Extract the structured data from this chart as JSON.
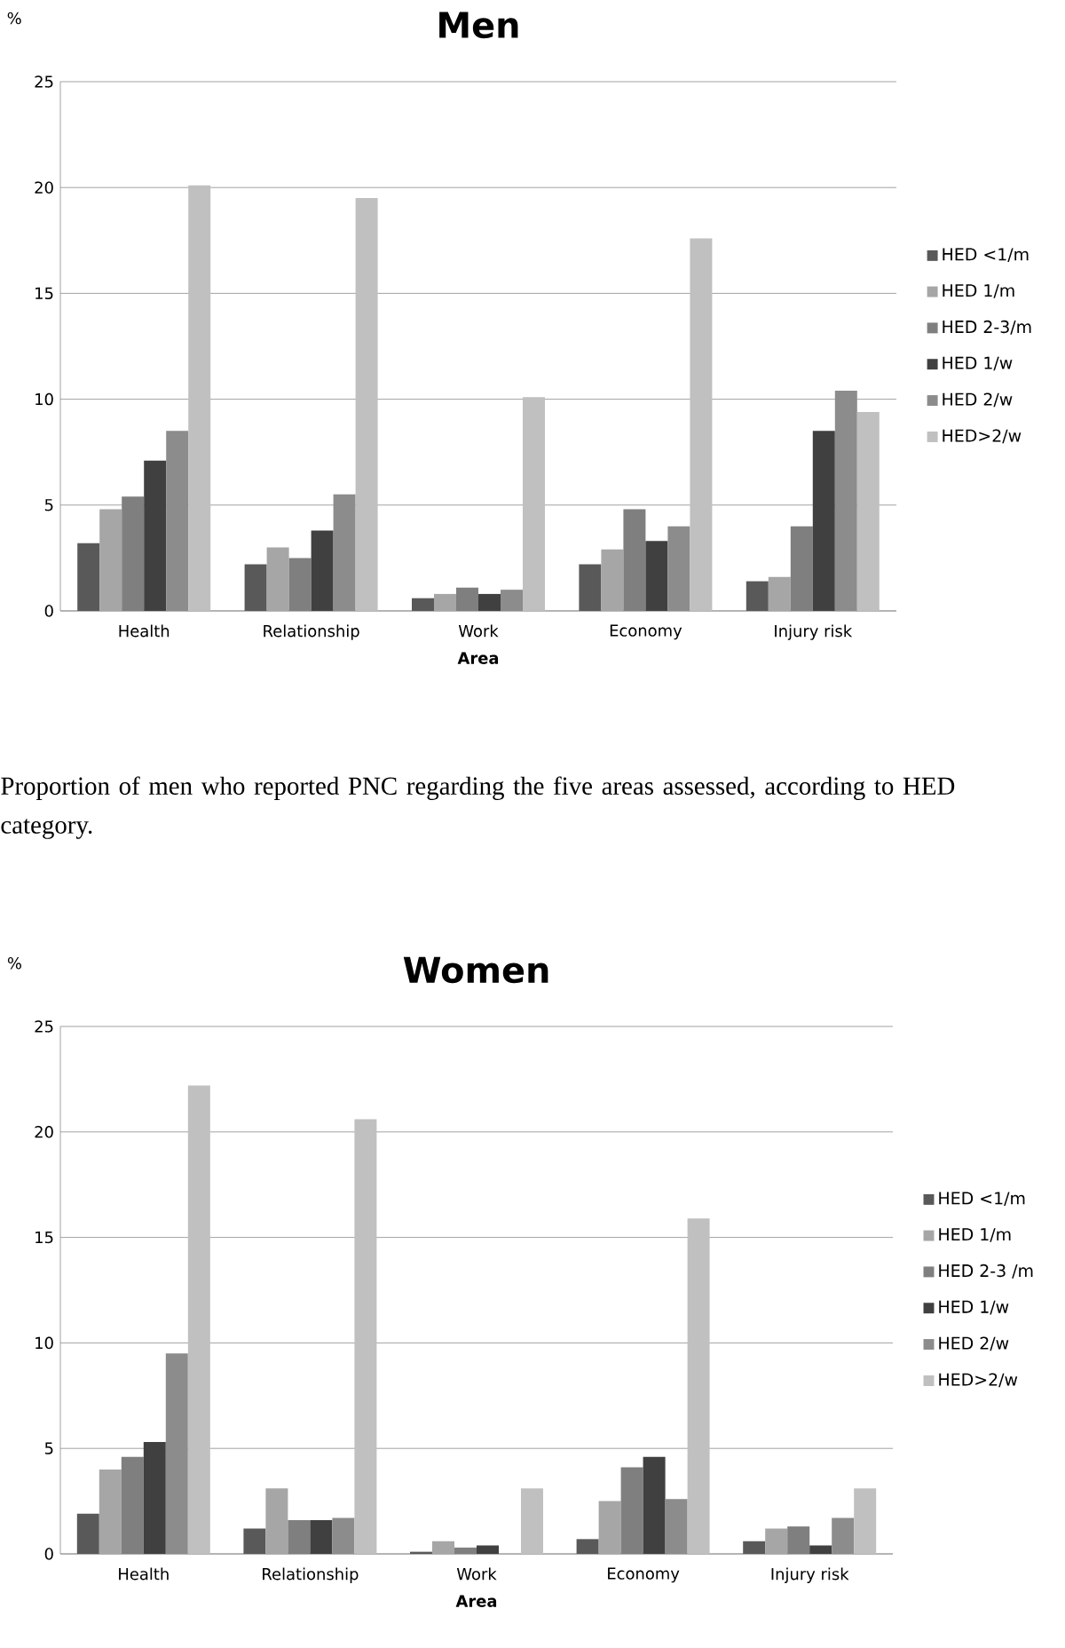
{
  "chart_data": [
    {
      "type": "bar",
      "title": "Men",
      "xlabel": "Area",
      "ylabel": "%",
      "categories": [
        "Health",
        "Relationship",
        "Work",
        "Economy",
        "Injury risk"
      ],
      "ylim": [
        0,
        25
      ],
      "yticks": [
        0,
        5,
        10,
        15,
        20,
        25
      ],
      "grid": "y",
      "legend": "right",
      "annotations": [
        "Proportion of men who reported PNC regarding the five areas assessed, according to HED category."
      ],
      "series": [
        {
          "name": "HED <1/m",
          "color": "#595959",
          "values": [
            3.2,
            2.2,
            0.6,
            2.2,
            1.4
          ]
        },
        {
          "name": "HED 1/m",
          "color": "#a6a6a6",
          "values": [
            4.8,
            3.0,
            0.8,
            2.9,
            1.6
          ]
        },
        {
          "name": "HED 2-3/m",
          "color": "#7f7f7f",
          "values": [
            5.4,
            2.5,
            1.1,
            4.8,
            4.0
          ]
        },
        {
          "name": "HED 1/w",
          "color": "#404040",
          "values": [
            7.1,
            3.8,
            0.8,
            3.3,
            8.5
          ]
        },
        {
          "name": "HED 2/w",
          "color": "#8c8c8c",
          "values": [
            8.5,
            5.5,
            1.0,
            4.0,
            10.4
          ]
        },
        {
          "name": "HED>2/w",
          "color": "#c0c0c0",
          "values": [
            20.1,
            19.5,
            10.1,
            17.6,
            9.4
          ]
        }
      ]
    },
    {
      "type": "bar",
      "title": "Women",
      "xlabel": "Area",
      "ylabel": "%",
      "categories": [
        "Health",
        "Relationship",
        "Work",
        "Economy",
        "Injury risk"
      ],
      "ylim": [
        0,
        25
      ],
      "yticks": [
        0,
        5,
        10,
        15,
        20,
        25
      ],
      "grid": "y",
      "legend": "right",
      "series": [
        {
          "name": "HED <1/m",
          "color": "#595959",
          "values": [
            1.9,
            1.2,
            0.1,
            0.7,
            0.6
          ]
        },
        {
          "name": "HED 1/m",
          "color": "#a6a6a6",
          "values": [
            4.0,
            3.1,
            0.6,
            2.5,
            1.2
          ]
        },
        {
          "name": "HED 2-3 /m",
          "color": "#7f7f7f",
          "values": [
            4.6,
            1.6,
            0.3,
            4.1,
            1.3
          ]
        },
        {
          "name": "HED 1/w",
          "color": "#404040",
          "values": [
            5.3,
            1.6,
            0.4,
            4.6,
            0.4
          ]
        },
        {
          "name": "HED 2/w",
          "color": "#8c8c8c",
          "values": [
            9.5,
            1.7,
            0.0,
            2.6,
            1.7
          ]
        },
        {
          "name": "HED>2/w",
          "color": "#c0c0c0",
          "values": [
            22.2,
            20.6,
            3.1,
            15.9,
            3.1
          ]
        }
      ]
    }
  ]
}
